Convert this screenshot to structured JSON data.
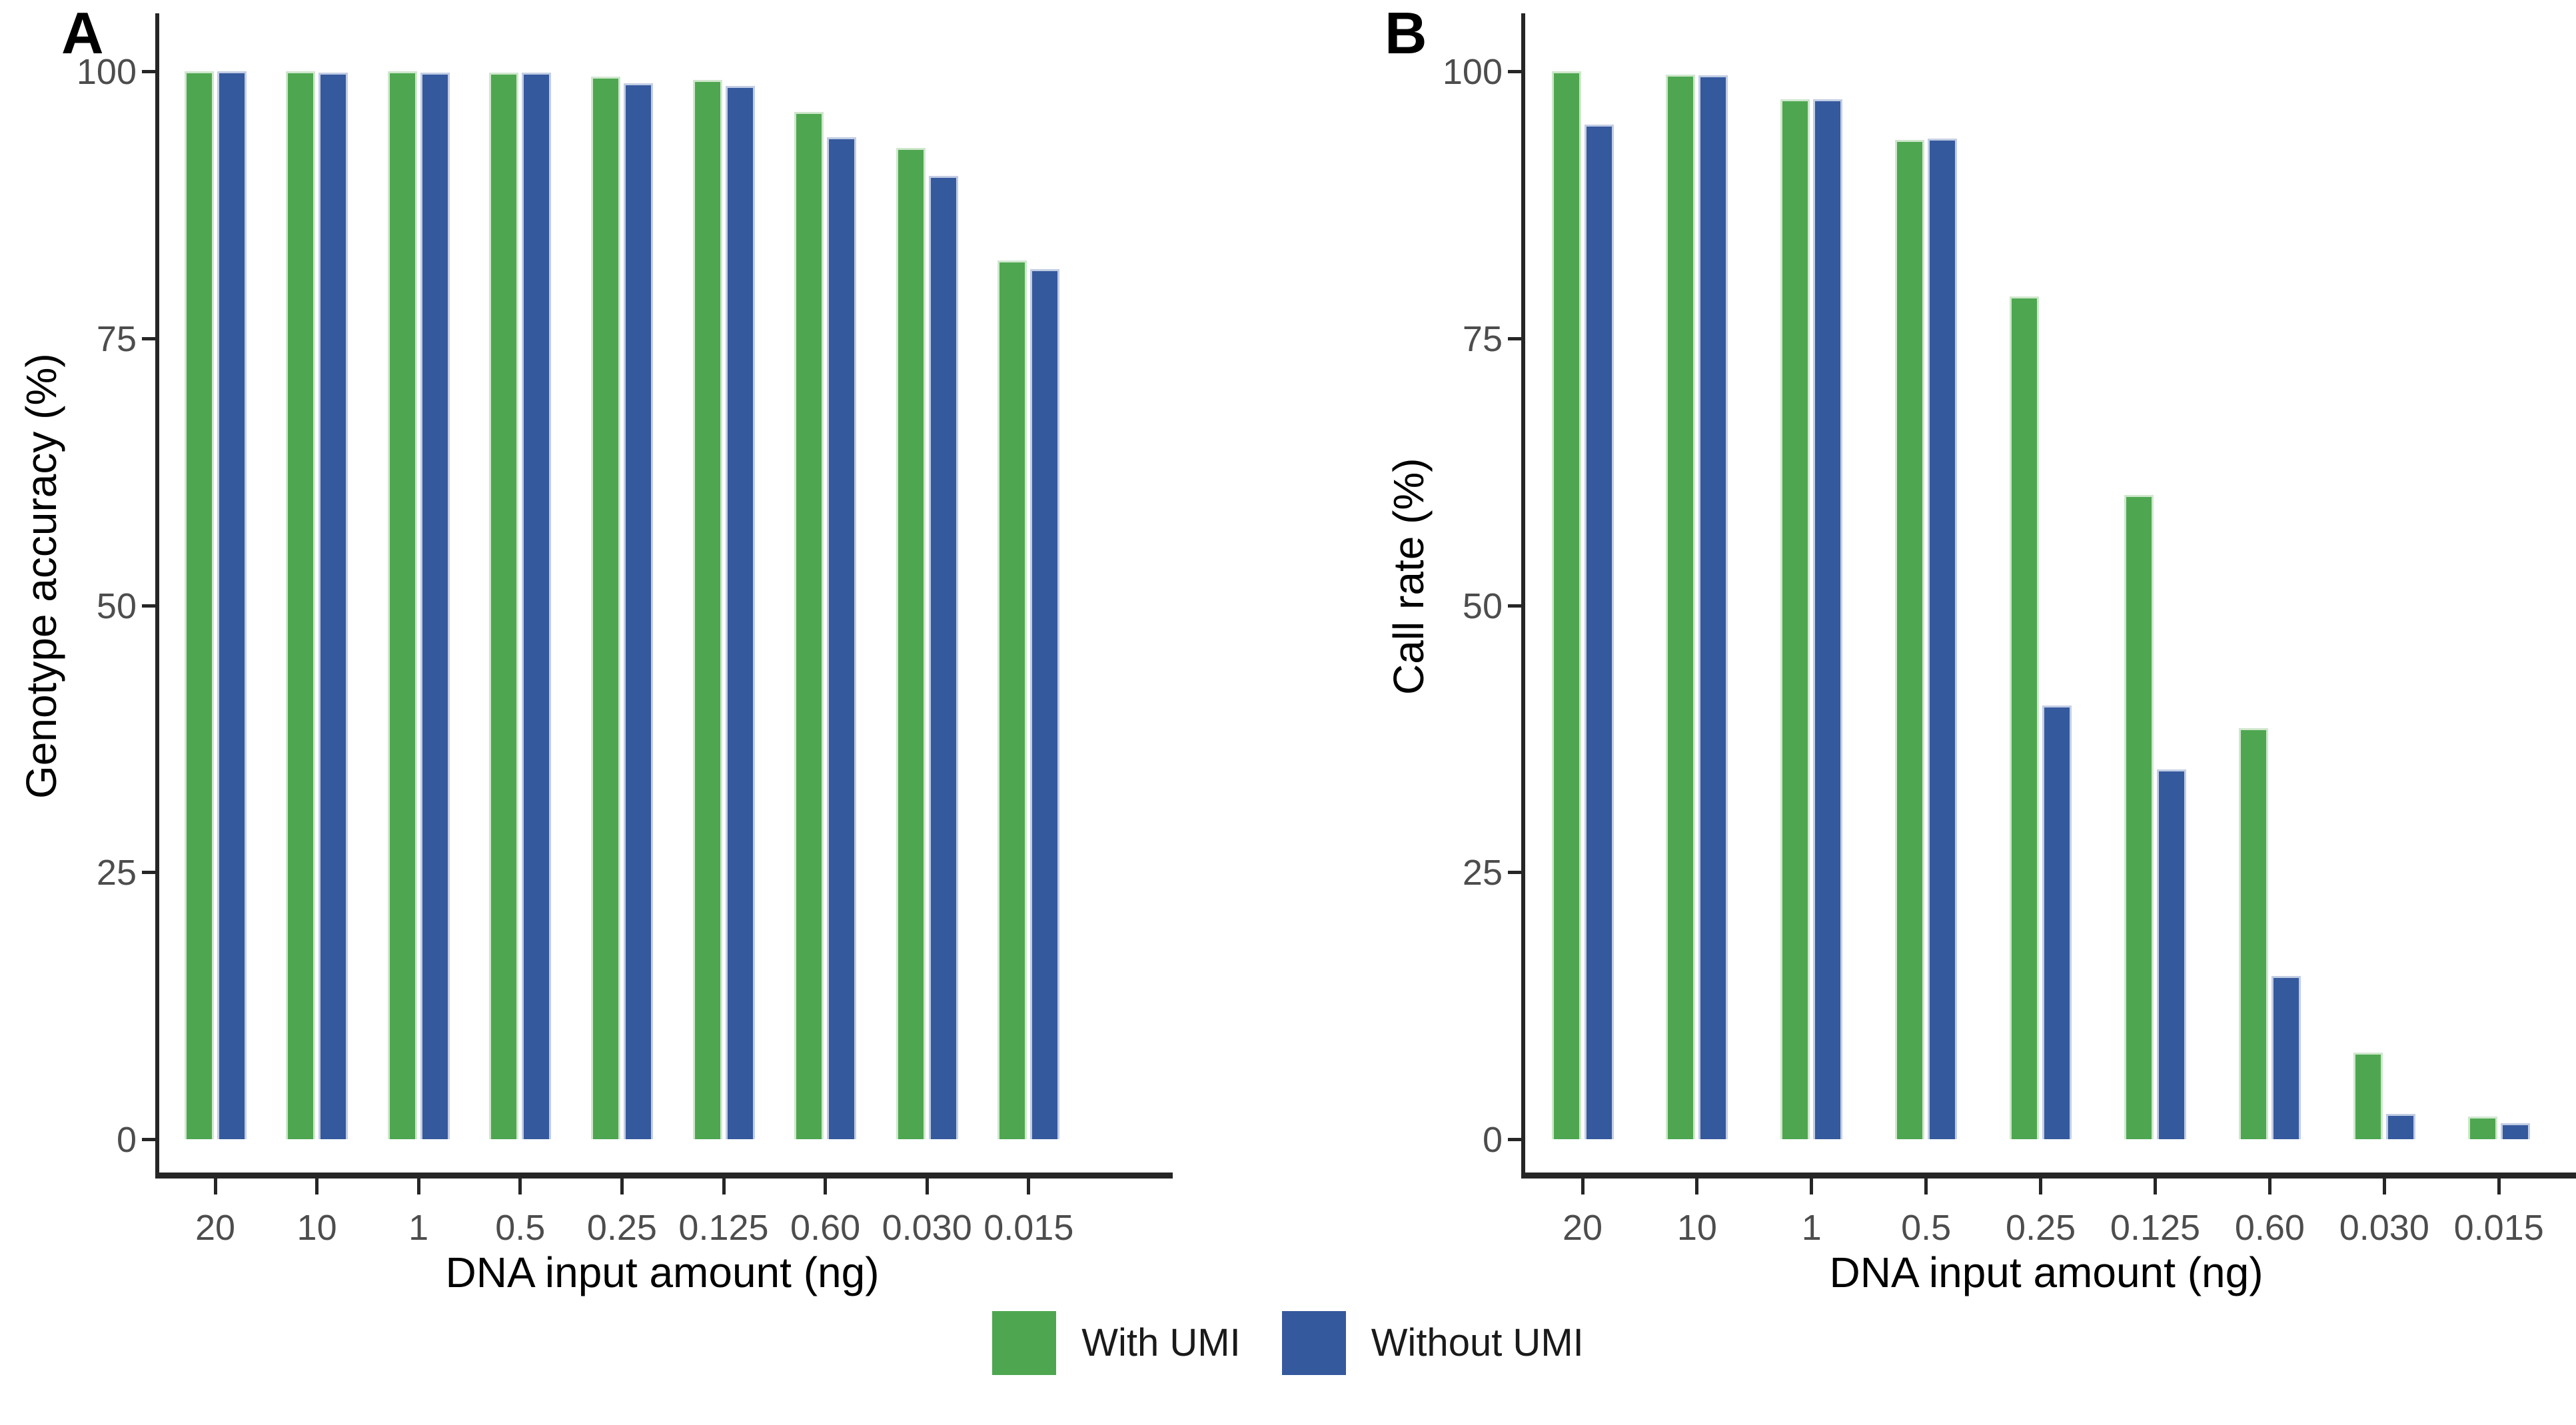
{
  "legend": {
    "position": "bottom-center",
    "items": [
      {
        "label": "With UMI",
        "color": "#4ea750"
      },
      {
        "label": "Without UMI",
        "color": "#35599d"
      }
    ]
  },
  "chart_data": [
    {
      "type": "bar",
      "panel": "A",
      "xlabel": "DNA input amount (ng)",
      "ylabel": "Genotype accuracy (%)",
      "categories": [
        "20",
        "10",
        "1",
        "0.5",
        "0.25",
        "0.125",
        "0.60",
        "0.030",
        "0.015"
      ],
      "yticks": [
        0,
        25,
        50,
        75,
        100
      ],
      "ylim": [
        0,
        100
      ],
      "grid": false,
      "legend_position": "shared-bottom",
      "series": [
        {
          "name": "With UMI",
          "color": "#4ea750",
          "values": [
            100,
            100,
            100,
            99.9,
            99.5,
            99.2,
            96.2,
            92.8,
            82.3
          ]
        },
        {
          "name": "Without UMI",
          "color": "#35599d",
          "values": [
            100,
            99.9,
            99.9,
            99.9,
            98.9,
            98.6,
            93.8,
            90.2,
            81.5
          ]
        }
      ]
    },
    {
      "type": "bar",
      "panel": "B",
      "xlabel": "DNA input amount (ng)",
      "ylabel": "Call rate (%)",
      "categories": [
        "20",
        "10",
        "1",
        "0.5",
        "0.25",
        "0.125",
        "0.60",
        "0.030",
        "0.015"
      ],
      "yticks": [
        0,
        25,
        50,
        75,
        100
      ],
      "ylim": [
        0,
        100
      ],
      "grid": false,
      "legend_position": "shared-bottom",
      "series": [
        {
          "name": "With UMI",
          "color": "#4ea750",
          "values": [
            100,
            99.7,
            97.4,
            93.6,
            78.9,
            60.3,
            38.5,
            8.1,
            2.1
          ]
        },
        {
          "name": "Without UMI",
          "color": "#35599d",
          "values": [
            95.0,
            99.6,
            97.4,
            93.7,
            40.6,
            34.6,
            15.3,
            2.4,
            1.5
          ]
        }
      ]
    }
  ]
}
